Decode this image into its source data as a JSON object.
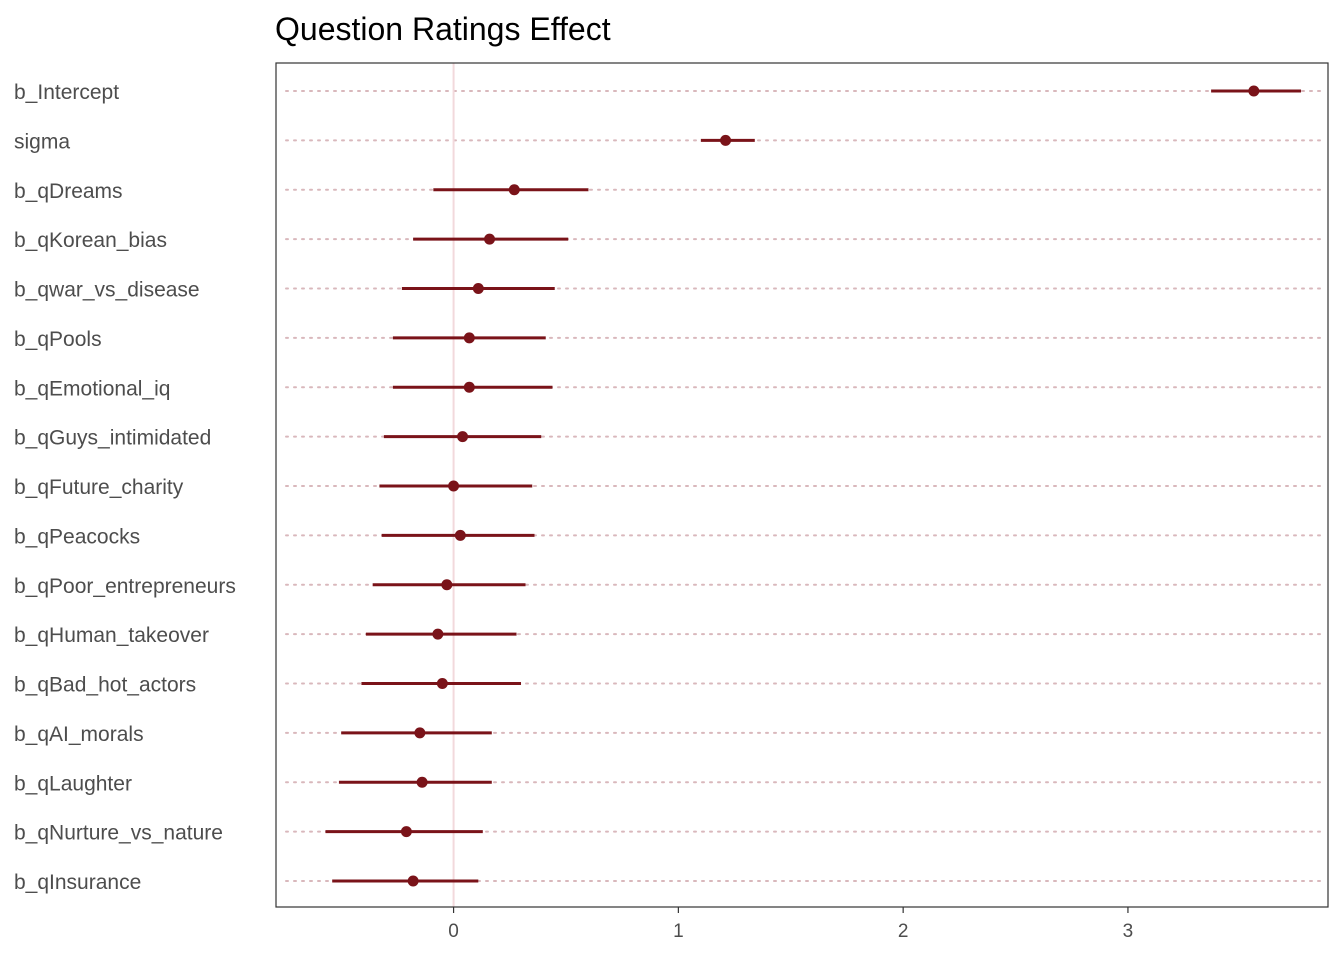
{
  "chart_data": {
    "type": "scatter",
    "title": "Question Ratings Effect",
    "xlabel": "",
    "ylabel": "",
    "xlim": [
      -0.79,
      3.89
    ],
    "x_ticks": [
      0,
      1,
      2,
      3
    ],
    "x_tick_labels": [
      "0",
      "1",
      "2",
      "3"
    ],
    "reference_line_x": 0,
    "grid": "dotted horizontal guides per row",
    "colors": {
      "point": "#7a1319",
      "interval": "#7a1319",
      "reference": "#f2d9dc",
      "guide": "#d9b8bc",
      "panel_border": "#333333"
    },
    "series": [
      {
        "points": [
          {
            "label": "b_Intercept",
            "estimate": 3.56,
            "lower": 3.37,
            "upper": 3.77
          },
          {
            "label": "sigma",
            "estimate": 1.21,
            "lower": 1.1,
            "upper": 1.34
          },
          {
            "label": "b_qDreams",
            "estimate": 0.27,
            "lower": -0.09,
            "upper": 0.6
          },
          {
            "label": "b_qKorean_bias",
            "estimate": 0.16,
            "lower": -0.18,
            "upper": 0.51
          },
          {
            "label": "b_qwar_vs_disease",
            "estimate": 0.11,
            "lower": -0.23,
            "upper": 0.45
          },
          {
            "label": "b_qPools",
            "estimate": 0.07,
            "lower": -0.27,
            "upper": 0.41
          },
          {
            "label": "b_qEmotional_iq",
            "estimate": 0.07,
            "lower": -0.27,
            "upper": 0.44
          },
          {
            "label": "b_qGuys_intimidated",
            "estimate": 0.04,
            "lower": -0.31,
            "upper": 0.39
          },
          {
            "label": "b_qFuture_charity",
            "estimate": 0.0,
            "lower": -0.33,
            "upper": 0.35
          },
          {
            "label": "b_qPeacocks",
            "estimate": 0.03,
            "lower": -0.32,
            "upper": 0.36
          },
          {
            "label": "b_qPoor_entrepreneurs",
            "estimate": -0.03,
            "lower": -0.36,
            "upper": 0.32
          },
          {
            "label": "b_qHuman_takeover",
            "estimate": -0.07,
            "lower": -0.39,
            "upper": 0.28
          },
          {
            "label": "b_qBad_hot_actors",
            "estimate": -0.05,
            "lower": -0.41,
            "upper": 0.3
          },
          {
            "label": "b_qAI_morals",
            "estimate": -0.15,
            "lower": -0.5,
            "upper": 0.17
          },
          {
            "label": "b_qLaughter",
            "estimate": -0.14,
            "lower": -0.51,
            "upper": 0.17
          },
          {
            "label": "b_qNurture_vs_nature",
            "estimate": -0.21,
            "lower": -0.57,
            "upper": 0.13
          },
          {
            "label": "b_qInsurance",
            "estimate": -0.18,
            "lower": -0.54,
            "upper": 0.11
          }
        ]
      }
    ]
  }
}
